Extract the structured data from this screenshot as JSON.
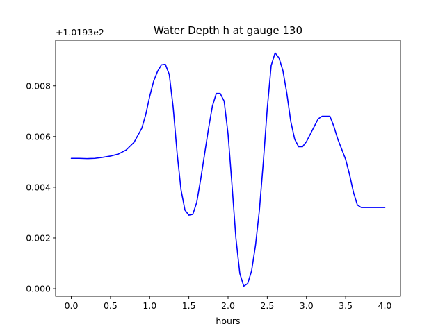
{
  "chart_data": {
    "type": "line",
    "title": "Water Depth h at gauge 130",
    "xlabel": "hours",
    "ylabel": "",
    "y_offset_label": "+1.0193e2",
    "xlim": [
      -0.2,
      4.2
    ],
    "ylim": [
      -0.0003,
      0.0098
    ],
    "xticks": [
      0.0,
      0.5,
      1.0,
      1.5,
      2.0,
      2.5,
      3.0,
      3.5,
      4.0
    ],
    "xtick_labels": [
      "0.0",
      "0.5",
      "1.0",
      "1.5",
      "2.0",
      "2.5",
      "3.0",
      "3.5",
      "4.0"
    ],
    "yticks": [
      0.0,
      0.002,
      0.004,
      0.006,
      0.008
    ],
    "ytick_labels": [
      "0.000",
      "0.002",
      "0.004",
      "0.006",
      "0.008"
    ],
    "grid": false,
    "series": [
      {
        "color": "#0000ff",
        "x": [
          0.0,
          0.1,
          0.2,
          0.3,
          0.4,
          0.5,
          0.6,
          0.7,
          0.8,
          0.9,
          0.95,
          1.0,
          1.05,
          1.1,
          1.15,
          1.2,
          1.25,
          1.3,
          1.35,
          1.4,
          1.45,
          1.5,
          1.55,
          1.6,
          1.65,
          1.7,
          1.75,
          1.8,
          1.85,
          1.9,
          1.95,
          2.0,
          2.05,
          2.1,
          2.15,
          2.2,
          2.25,
          2.3,
          2.35,
          2.4,
          2.45,
          2.5,
          2.55,
          2.6,
          2.65,
          2.7,
          2.75,
          2.8,
          2.85,
          2.9,
          2.95,
          3.0,
          3.05,
          3.1,
          3.15,
          3.2,
          3.25,
          3.3,
          3.35,
          3.4,
          3.45,
          3.5,
          3.55,
          3.6,
          3.65,
          3.7,
          3.75,
          3.8,
          3.85,
          3.9,
          3.95,
          4.0
        ],
        "values": [
          0.00514,
          0.00514,
          0.00513,
          0.00514,
          0.00518,
          0.00523,
          0.00531,
          0.00547,
          0.00577,
          0.00633,
          0.00687,
          0.00758,
          0.00818,
          0.00857,
          0.00883,
          0.00885,
          0.00845,
          0.00715,
          0.00535,
          0.0039,
          0.0031,
          0.0029,
          0.00293,
          0.0034,
          0.0043,
          0.0053,
          0.0063,
          0.0072,
          0.0077,
          0.0077,
          0.0074,
          0.0061,
          0.0041,
          0.002,
          0.0006,
          0.0001,
          0.0002,
          0.0007,
          0.0017,
          0.0031,
          0.005,
          0.0071,
          0.0088,
          0.0093,
          0.0091,
          0.0086,
          0.0077,
          0.0066,
          0.0059,
          0.0056,
          0.0056,
          0.0058,
          0.0061,
          0.0064,
          0.0067,
          0.0068,
          0.0068,
          0.0068,
          0.0064,
          0.0059,
          0.0055,
          0.0051,
          0.0045,
          0.0038,
          0.0033,
          0.0032,
          0.0032,
          0.0032,
          0.0032,
          0.0032,
          0.0032,
          0.0032
        ]
      }
    ]
  }
}
